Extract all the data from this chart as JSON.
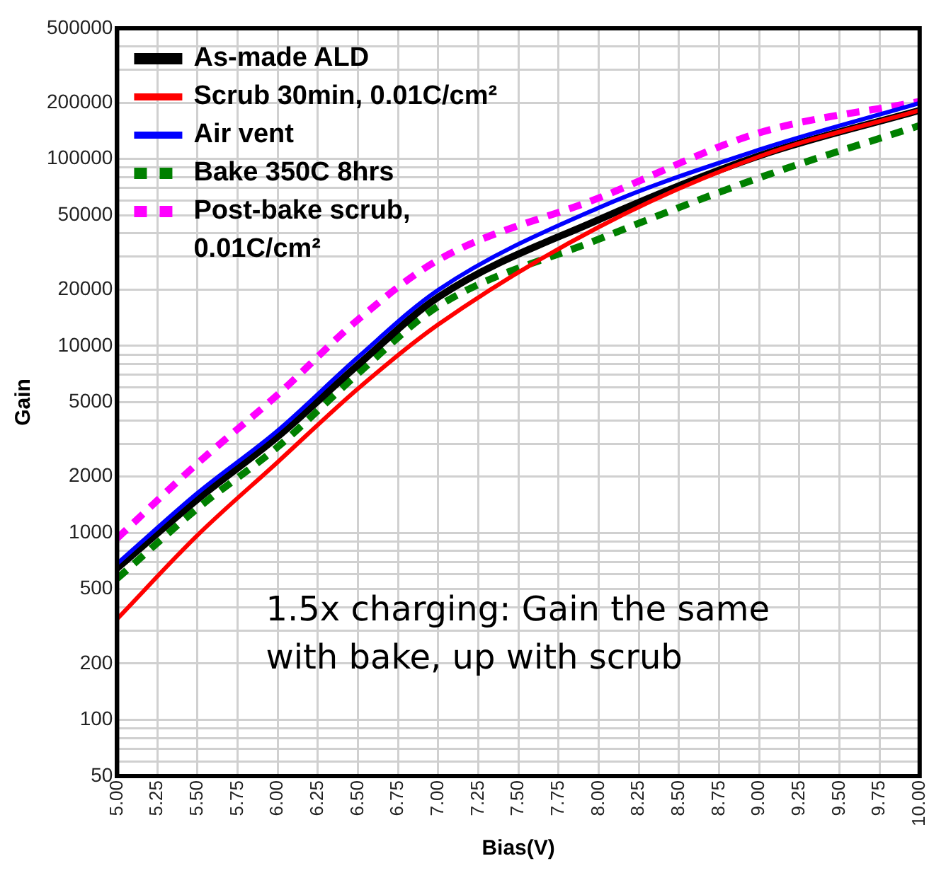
{
  "chart_data": {
    "type": "line",
    "xlabel": "Bias(V)",
    "ylabel": "Gain",
    "x": [
      5.0,
      5.5,
      6.0,
      6.5,
      7.0,
      8.0,
      9.0,
      10.0
    ],
    "series": [
      {
        "name": "As-made ALD",
        "color": "#000000",
        "values": [
          647,
          1510,
          3270,
          7900,
          18200,
          47300,
          104000,
          182000
        ]
      },
      {
        "name": "Scrub 30min, 0.01C/cm²",
        "color": "#ff0000",
        "values": [
          346,
          970,
          2390,
          5900,
          13000,
          43200,
          103000,
          182000
        ]
      },
      {
        "name": "Air vent",
        "color": "#0000ff",
        "values": [
          684,
          1630,
          3520,
          8690,
          19900,
          54800,
          112000,
          199000
        ]
      },
      {
        "name": "Bake 350C 8hrs",
        "color": "#008000",
        "line_style": "dashed",
        "values": [
          569,
          1350,
          2880,
          7100,
          16300,
          37200,
          79300,
          151000
        ]
      },
      {
        "name": "Post-bake scrub, 0.01C/cm²",
        "color": "#ff00ff",
        "line_style": "dashed",
        "values": [
          935,
          2350,
          5480,
          13800,
          28800,
          61800,
          138000,
          203000
        ]
      }
    ],
    "xlim": [
      5.0,
      10.0
    ],
    "xticks": [
      {
        "value": 5.0,
        "label": "5.00"
      },
      {
        "value": 5.25,
        "label": "5.25"
      },
      {
        "value": 5.5,
        "label": "5.50"
      },
      {
        "value": 5.75,
        "label": "5.75"
      },
      {
        "value": 6.0,
        "label": "6.00"
      },
      {
        "value": 6.25,
        "label": "6.25"
      },
      {
        "value": 6.5,
        "label": "6.50"
      },
      {
        "value": 6.75,
        "label": "6.75"
      },
      {
        "value": 7.0,
        "label": "7.00"
      },
      {
        "value": 7.25,
        "label": "7.25"
      },
      {
        "value": 7.5,
        "label": "7.50"
      },
      {
        "value": 7.75,
        "label": "7.75"
      },
      {
        "value": 8.0,
        "label": "8.00"
      },
      {
        "value": 8.25,
        "label": "8.25"
      },
      {
        "value": 8.5,
        "label": "8.50"
      },
      {
        "value": 8.75,
        "label": "8.75"
      },
      {
        "value": 9.0,
        "label": "9.00"
      },
      {
        "value": 9.25,
        "label": "9.25"
      },
      {
        "value": 9.5,
        "label": "9.50"
      },
      {
        "value": 9.75,
        "label": "9.75"
      },
      {
        "value": 10.0,
        "label": "10.00"
      }
    ],
    "ylim": [
      50,
      500000
    ],
    "yticks": [
      50,
      {
        "value": 60,
        "label": null
      },
      {
        "value": 70,
        "label": null
      },
      {
        "value": 80,
        "label": null
      },
      {
        "value": 90,
        "label": null
      },
      100,
      200,
      {
        "value": 300,
        "label": null
      },
      {
        "value": 400,
        "label": null
      },
      500,
      {
        "value": 600,
        "label": null
      },
      {
        "value": 700,
        "label": null
      },
      {
        "value": 800,
        "label": null
      },
      {
        "value": 900,
        "label": null
      },
      1000,
      2000,
      {
        "value": 3000,
        "label": null
      },
      {
        "value": 4000,
        "label": null
      },
      5000,
      {
        "value": 6000,
        "label": null
      },
      {
        "value": 7000,
        "label": null
      },
      {
        "value": 8000,
        "label": null
      },
      {
        "value": 9000,
        "label": null
      },
      10000,
      20000,
      {
        "value": 30000,
        "label": null
      },
      {
        "value": 40000,
        "label": null
      },
      50000,
      {
        "value": 60000,
        "label": null
      },
      {
        "value": 70000,
        "label": null
      },
      {
        "value": 80000,
        "label": null
      },
      {
        "value": 90000,
        "label": null
      },
      100000,
      200000,
      {
        "value": 300000,
        "label": null
      },
      {
        "value": 400000,
        "label": null
      },
      500000
    ],
    "log": "y",
    "grid": true,
    "legend": "top left",
    "marker": "none",
    "annotations": [
      "1.5x charging: Gain the same with bake, up with scrub"
    ]
  }
}
